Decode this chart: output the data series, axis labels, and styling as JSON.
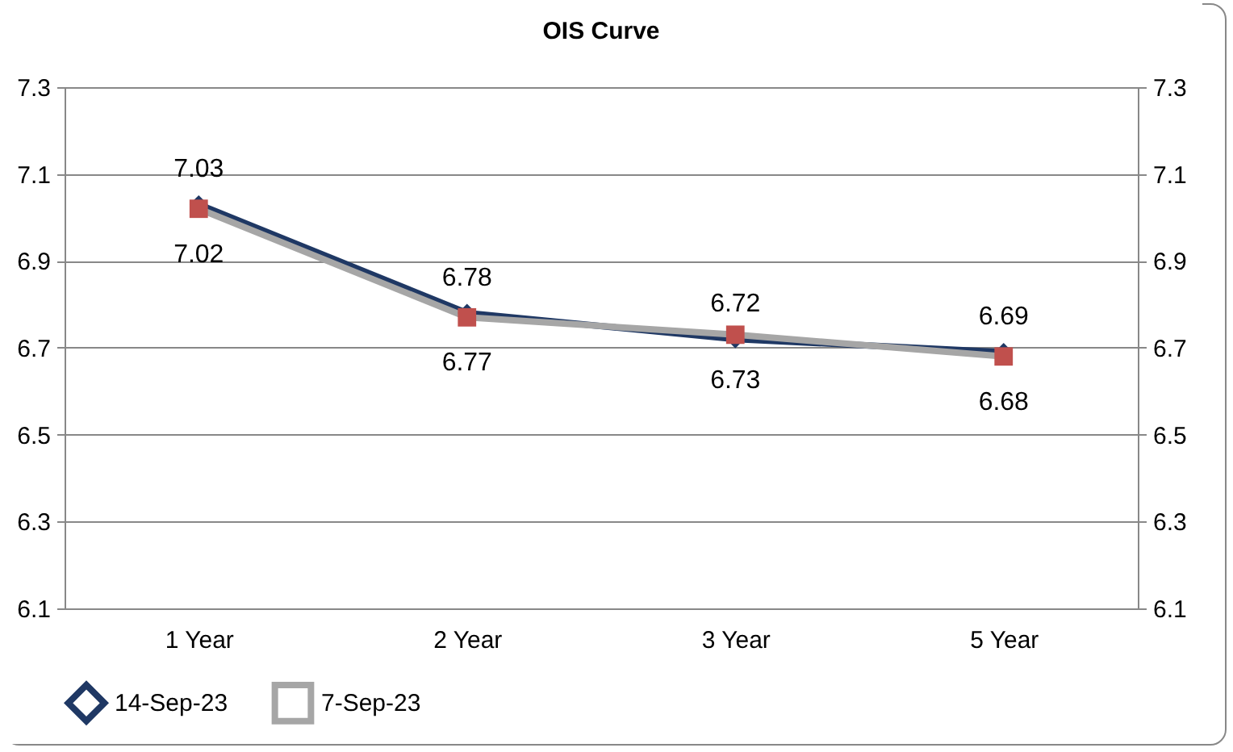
{
  "chart_data": {
    "type": "line",
    "title": "OIS Curve",
    "categories": [
      "1 Year",
      "2 Year",
      "3 Year",
      "5 Year"
    ],
    "series": [
      {
        "name": "14-Sep-23",
        "color": "#1f3864",
        "values": [
          7.03,
          6.78,
          6.72,
          6.69
        ],
        "marker": "diamond"
      },
      {
        "name": "7-Sep-23",
        "color": "#a6a6a6",
        "values": [
          7.02,
          6.77,
          6.73,
          6.68
        ],
        "marker": "square"
      }
    ],
    "ylim": [
      6.1,
      7.3
    ],
    "yticks": [
      6.1,
      6.3,
      6.5,
      6.7,
      6.9,
      7.1,
      7.3
    ],
    "y2lim": [
      6.1,
      7.3
    ],
    "y2ticks": [
      6.1,
      6.3,
      6.5,
      6.7,
      6.9,
      7.1,
      7.3
    ],
    "grid": "y",
    "legend": "bottom",
    "data_labels": true,
    "line_style": "solid"
  }
}
